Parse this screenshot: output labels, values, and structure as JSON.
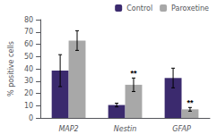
{
  "chart_data": {
    "type": "bar",
    "categories": [
      "MAP2",
      "Nestin",
      "GFAP"
    ],
    "series": [
      {
        "name": "Control",
        "color": "#3b2a6e",
        "values": [
          38.5,
          10.5,
          32.5
        ],
        "errors": [
          13.0,
          1.5,
          8.0
        ]
      },
      {
        "name": "Paroxetine",
        "color": "#a8a8a8",
        "values": [
          63.0,
          27.0,
          7.0
        ],
        "errors": [
          8.0,
          5.5,
          1.5
        ]
      }
    ],
    "ylabel": "% positive cells",
    "ylim": [
      0,
      80
    ],
    "yticks": [
      0,
      10,
      20,
      30,
      40,
      50,
      60,
      70,
      80
    ],
    "grid": false,
    "legend": "upper right",
    "annotations": [
      {
        "category": "Nestin",
        "series": "Paroxetine",
        "text": "**"
      },
      {
        "category": "GFAP",
        "series": "Paroxetine",
        "text": "**"
      }
    ]
  }
}
